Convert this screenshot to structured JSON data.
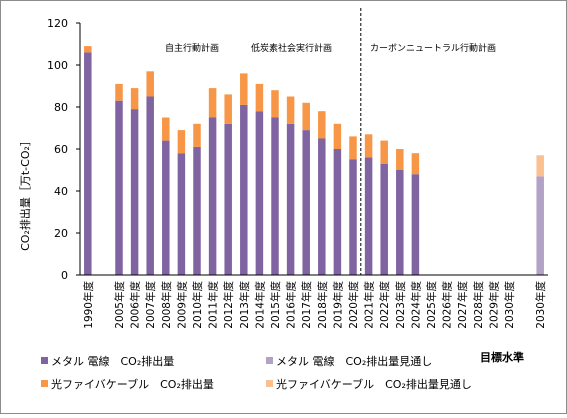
{
  "chart_data": {
    "type": "bar",
    "stacked": true,
    "ylabel": "CO₂排出量［万t-CO₂］",
    "ylim": [
      0,
      120
    ],
    "yticks": [
      0,
      20,
      40,
      60,
      80,
      100,
      120
    ],
    "grid": false,
    "categories": [
      "1990年度",
      "",
      "2005年度",
      "2006年度",
      "2007年度",
      "2008年度",
      "2009年度",
      "2010年度",
      "2011年度",
      "2012年度",
      "2013年度",
      "2014年度",
      "2015年度",
      "2016年度",
      "2017年度",
      "2018年度",
      "2019年度",
      "2020年度",
      "2021年度",
      "2022年度",
      "2023年度",
      "2024年度",
      "2025年度",
      "2026年度",
      "2027年度",
      "2028年度",
      "2029年度",
      "2030年度",
      "",
      "2030年度"
    ],
    "series": [
      {
        "name": "メタル 電線　CO₂排出量",
        "color": "#8064A2",
        "values": [
          106,
          null,
          83,
          79,
          85,
          64,
          58,
          61,
          75,
          72,
          81,
          78,
          75,
          72,
          69,
          65,
          60,
          55,
          56,
          53,
          50,
          48,
          null,
          null,
          null,
          null,
          null,
          null,
          null,
          null
        ]
      },
      {
        "name": "光ファイバケーブル　CO₂排出量",
        "color": "#F79646",
        "values": [
          3,
          null,
          8,
          10,
          12,
          11,
          11,
          11,
          14,
          14,
          15,
          13,
          13,
          13,
          13,
          13,
          12,
          11,
          11,
          11,
          10,
          10,
          null,
          null,
          null,
          null,
          null,
          null,
          null,
          null
        ]
      },
      {
        "name": "メタル 電線　CO₂排出量見通し",
        "color": "#B3A2C7",
        "values": [
          null,
          null,
          null,
          null,
          null,
          null,
          null,
          null,
          null,
          null,
          null,
          null,
          null,
          null,
          null,
          null,
          null,
          null,
          null,
          null,
          null,
          null,
          null,
          null,
          null,
          null,
          null,
          null,
          null,
          47
        ]
      },
      {
        "name": "光ファイバケーブル　CO₂排出量見通し",
        "color": "#FAC090",
        "values": [
          null,
          null,
          null,
          null,
          null,
          null,
          null,
          null,
          null,
          null,
          null,
          null,
          null,
          null,
          null,
          null,
          null,
          null,
          null,
          null,
          null,
          null,
          null,
          null,
          null,
          null,
          null,
          null,
          null,
          10
        ]
      }
    ],
    "annotations": [
      "自主行動計画",
      "低炭素社会実行計画",
      "カーボンニュートラル行動計画"
    ],
    "target_label": "目標水準",
    "divider_after": "2020年度"
  }
}
